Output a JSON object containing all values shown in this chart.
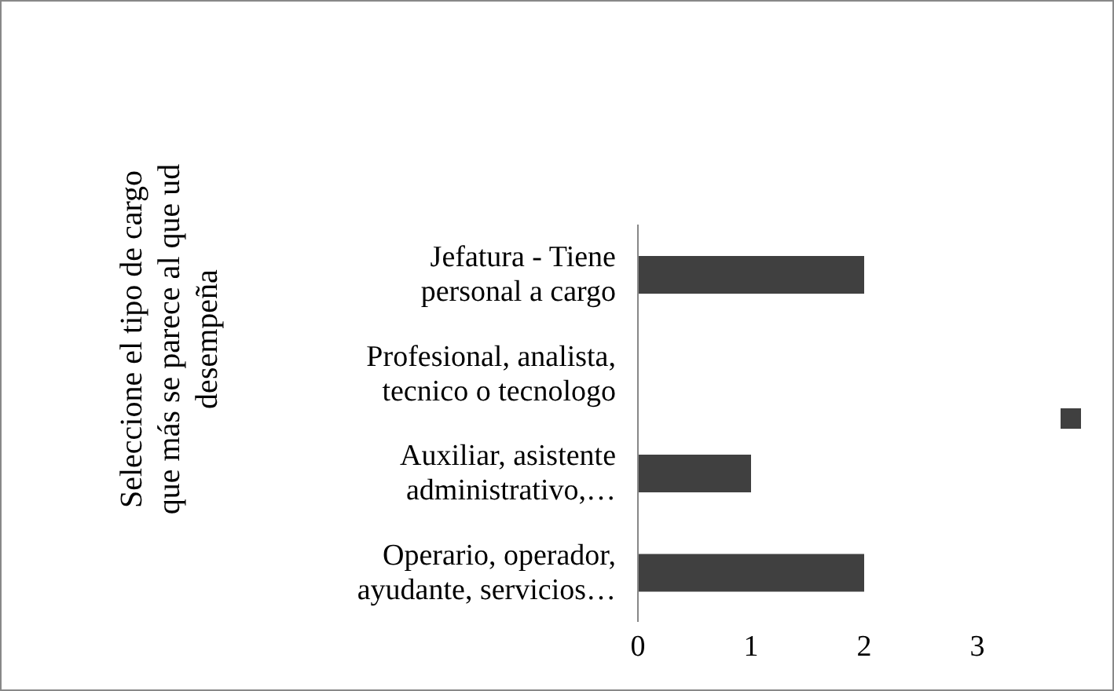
{
  "chart_data": {
    "type": "bar",
    "orientation": "horizontal",
    "ylabel": "Seleccione el tipo de cargo que más se parece al que ud desempeña",
    "categories": [
      "Jefatura - Tiene personal a cargo",
      "Profesional, analista, tecnico o tecnologo",
      "Auxiliar, asistente administrativo,…",
      "Operario, operador, ayudante, servicios…"
    ],
    "series": [
      {
        "color": "#404040",
        "values": [
          2,
          0,
          1,
          2
        ]
      }
    ],
    "xlim": [
      0,
      3
    ],
    "xticks": [
      0,
      1,
      2,
      3
    ],
    "grid": false
  }
}
